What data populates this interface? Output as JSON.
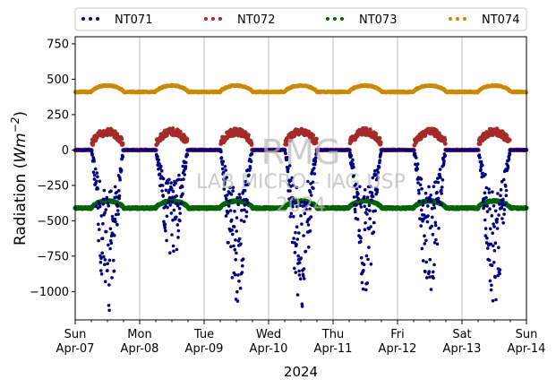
{
  "chart_data": {
    "type": "scatter",
    "title": "",
    "xlabel": "2024",
    "ylabel_main": "Radiation (",
    "ylabel_unit": "Wm",
    "ylabel_exp": "−2",
    "ylabel_close": ")",
    "ylim": [
      -1200,
      800
    ],
    "yticks": [
      -1000,
      -750,
      -500,
      -250,
      0,
      250,
      500,
      750
    ],
    "ytick_labels": [
      "−1000",
      "−750",
      "−500",
      "−250",
      "0",
      "250",
      "500",
      "750"
    ],
    "xlim_days": [
      0,
      7
    ],
    "x_ticks": [
      {
        "day": "Sun",
        "date": "Apr-07"
      },
      {
        "day": "Mon",
        "date": "Apr-08"
      },
      {
        "day": "Tue",
        "date": "Apr-09"
      },
      {
        "day": "Wed",
        "date": "Apr-10"
      },
      {
        "day": "Thu",
        "date": "Apr-11"
      },
      {
        "day": "Fri",
        "date": "Apr-12"
      },
      {
        "day": "Sat",
        "date": "Apr-13"
      },
      {
        "day": "Sun",
        "date": "Apr-14"
      }
    ],
    "grid": "vertical",
    "legend_placement": "top",
    "watermark": [
      "RMG",
      "LAB MICRO - IAG USP",
      "2024"
    ],
    "series": [
      {
        "name": "NT071",
        "color": "#000080"
      },
      {
        "name": "NT072",
        "color": "#a52a2a"
      },
      {
        "name": "NT073",
        "color": "#006400"
      },
      {
        "name": "NT074",
        "color": "#cc8800"
      }
    ]
  }
}
